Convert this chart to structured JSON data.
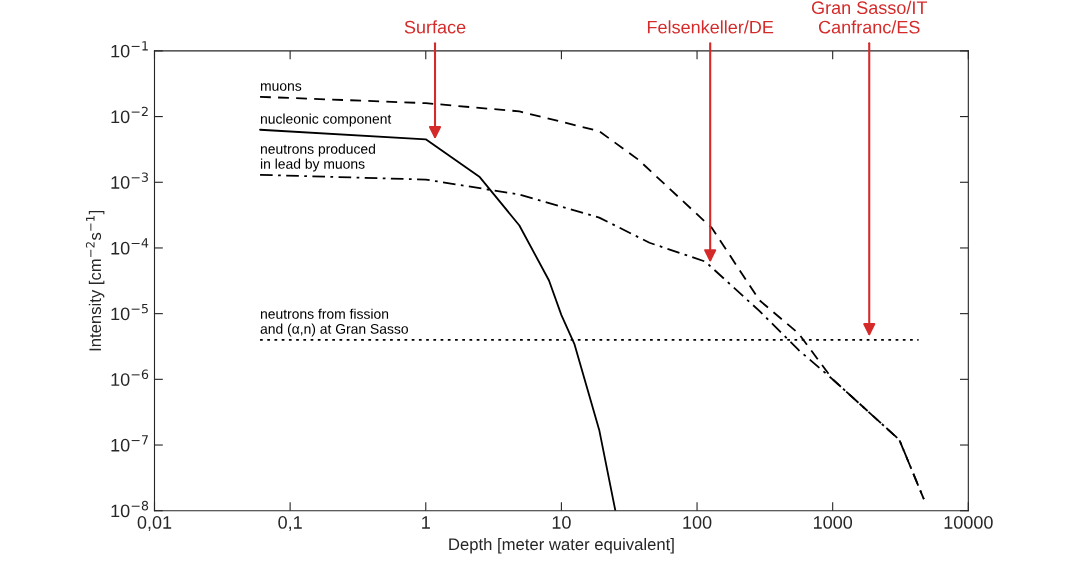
{
  "chart_data": {
    "type": "line",
    "xlabel": "Depth [meter water equivalent]",
    "ylabel": "Intensity [cm$^{−2}$s$^{−1}$]",
    "log": "xy",
    "xlim": [
      0.01,
      10000
    ],
    "xticks": [
      {
        "value": 0.01,
        "label": "0,01"
      },
      {
        "value": 0.1,
        "label": "0,1"
      },
      1,
      10,
      100,
      1000,
      10000
    ],
    "ylim": [
      1e-08,
      0.1
    ],
    "yticks": [
      {
        "value": 1e-08,
        "label": "10$^{−8}$"
      },
      {
        "value": 1e-07,
        "label": "10$^{−7}$"
      },
      {
        "value": 1e-06,
        "label": "10$^{−6}$"
      },
      {
        "value": 1e-05,
        "label": "10$^{−5}$"
      },
      {
        "value": 0.0001,
        "label": "10$^{−4}$"
      },
      {
        "value": 0.001,
        "label": "10$^{−3}$"
      },
      {
        "value": 0.01,
        "label": "10$^{−2}$"
      },
      {
        "value": 0.1,
        "label": "10$^{−1}$"
      }
    ],
    "grid": false,
    "legend": false,
    "marker": "none",
    "series": [
      {
        "name": "muons",
        "color": "#000000",
        "line_style": "dashed",
        "x": [
          0.06,
          1,
          4.9,
          19,
          37,
          129,
          288,
          560,
          1000,
          3100,
          4700
        ],
        "values": [
          0.02,
          0.016,
          0.012,
          0.006,
          0.0022,
          0.0002,
          1.6e-05,
          5e-06,
          1e-06,
          1.2e-07,
          1.5e-08
        ]
      },
      {
        "name": "nucleonic component",
        "color": "#000000",
        "line_style": "solid",
        "x": [
          0.06,
          1,
          2.5,
          4.9,
          8.1,
          10,
          12.5,
          19,
          25
        ],
        "values": [
          0.0063,
          0.0045,
          0.0012,
          0.00022,
          3.2e-05,
          9.5e-06,
          3.4e-06,
          1.7e-07,
          1e-08
        ]
      },
      {
        "name": "neutrons produced in lead by muons",
        "color": "#000000",
        "line_style": "dashdot",
        "x": [
          0.06,
          1,
          4.9,
          19,
          44.6,
          115,
          288,
          560,
          1000,
          3100,
          4700
        ],
        "values": [
          0.0013,
          0.0011,
          0.00065,
          0.00029,
          0.00012,
          6.2e-05,
          1.1e-05,
          2.8e-06,
          1e-06,
          1.2e-07,
          1.5e-08
        ]
      },
      {
        "name": "neutrons from fission and (α,n) at Gran Sasso",
        "color": "#000000",
        "line_style": "dotted",
        "x": [
          0.06,
          4300
        ],
        "values": [
          4e-06,
          4e-06
        ]
      }
    ],
    "annotations": [
      {
        "text": "Surface",
        "x": 1.17,
        "y": 0.0045
      },
      {
        "text": "Felsenkeller/DE",
        "x": 125,
        "y": 6e-05
      },
      {
        "text": "Gran Sasso/IT\nCanfranc/ES",
        "x": 1860,
        "y": 4.5e-06
      }
    ]
  }
}
